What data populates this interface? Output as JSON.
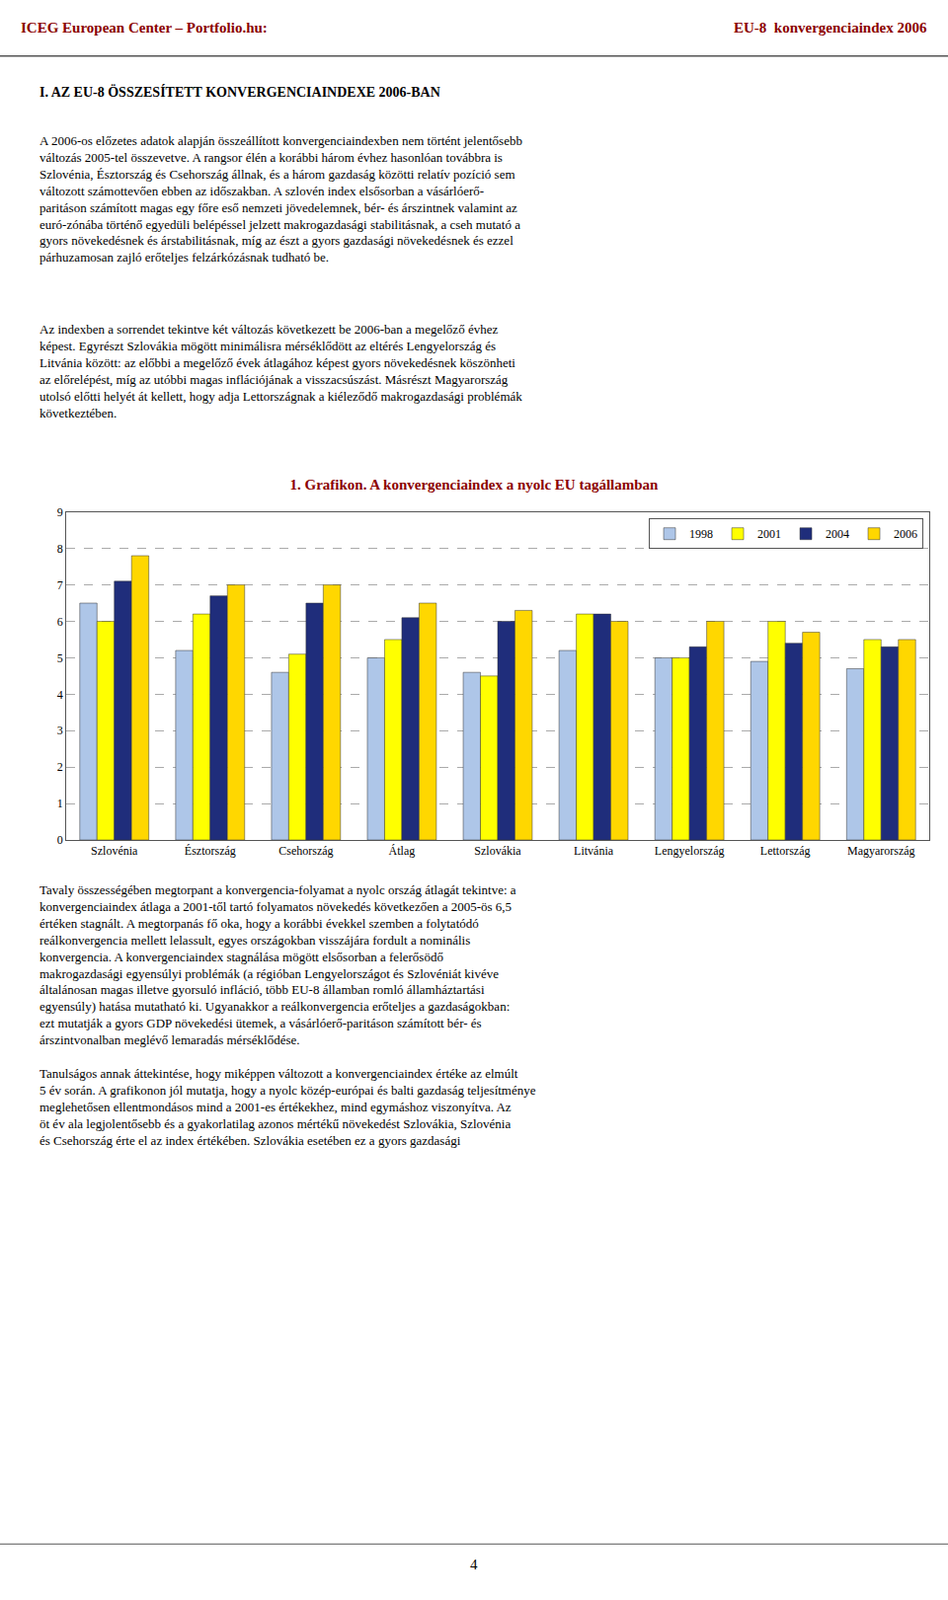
{
  "chart_data": {
    "type": "bar",
    "title": "1. Grafikon. A konvergenciaindex a nyolc EU tagállamban",
    "categories": [
      "Szlovénia",
      "Észtország",
      "Csehország",
      "Átlag",
      "Szlovákia",
      "Litvánia",
      "Lengyelország",
      "Lettország",
      "Magyarország"
    ],
    "series": [
      {
        "name": "1998",
        "color": "#aec6e8",
        "values": [
          6.5,
          5.2,
          4.6,
          5.0,
          4.6,
          5.2,
          5.0,
          4.9,
          4.7
        ]
      },
      {
        "name": "2001",
        "color": "#ffff00",
        "values": [
          6.0,
          6.2,
          5.1,
          5.5,
          4.5,
          6.2,
          5.0,
          6.0,
          5.5
        ]
      },
      {
        "name": "2004",
        "color": "#1f2d7b",
        "values": [
          7.1,
          6.7,
          6.5,
          6.1,
          6.0,
          6.2,
          5.3,
          5.4,
          5.3
        ]
      },
      {
        "name": "2006",
        "color": "#ffd700",
        "values": [
          7.8,
          7.0,
          7.0,
          6.5,
          6.3,
          6.0,
          6.0,
          5.7,
          5.5
        ]
      }
    ],
    "ylim": [
      0,
      9
    ],
    "yticks": [
      0,
      1,
      2,
      3,
      4,
      5,
      6,
      7,
      8,
      9
    ],
    "grid": true,
    "legend": "upper right",
    "annotations": [
      "ICEG European Center – Portfolio.hu:",
      "EU-8  konvergenciaindex 2006",
      "I. AZ EU-8 ÖSSZESÍTETT KONVERGENCIAINDEXE 2006-BAN",
      "A 2006-os előzetes adatok alapján összeállított konvergenciaindexben nem történt jelentősebb\nváltozás 2005-tel összevetve. A rangsor élén a korábbi három évhez hasonlóan továbbra is\nSzlovénia, Észtország és Csehország állnak, és a három gazdaság közötti relatív pozíció sem\nváltozott számottevően ebben az időszakban. A szlovén index elsősorban a vásárlóerő-\nparitáson számított magas egy főre eső nemzeti jövedelemnek, bér- és árszintnek valamint az\neuró-zónába történő egyedüli belépéssel jelzett makrogazdasági stabilitásnak, a cseh mutató a\ngyors növekedésnek és árstabilitásnak, míg az észt a gyors gazdasági növekedésnek és ezzel\npárhuzamosan zajló erőteljes felzárkózásnak tudható be.",
      "Az indexben a sorrendet tekintve két változás következett be 2006-ban a megelőző évhez\nképest. Egyrészt Szlovákia mögött minimálisra mérséklődött az eltérés Lengyelország és\nLitvánia között: az előbbi a megelőző évek átlagához képest gyors növekedésnek köszönheti\naz előrelépést, míg az utóbbi magas inflációjának a visszacsúszást. Másrészt Magyarország\nutolsó előtti helyét át kellett, hogy adja Lettországnak a kiéleződő makrogazdasági problémák\nkövetkeztében.",
      "Tavaly összességében megtorpant a konvergencia-folyamat a nyolc ország átlagát tekintve: a\nkonvergenciaindex átlaga a 2001-től tartó folyamatos növekedés következően a 2005-ös 6,5\nértéken stagnált. A megtorpanás fő oka, hogy a korábbi évekkel szemben a folytatódó\nreálkonvergencia mellett lelassult, egyes országokban visszájára fordult a nominális\nkonvergencia. A konvergenciaindex stagnálása mögött elsősorban a felerősödő\nmakrogazdasági egyensúlyi problémák (a régióban Lengyelországot és Szlovéniát kivéve\náltalánosan magas illetve gyorsuló infláció, több EU-8 államban romló államháztartási\negyensúly) hatása mutatható ki. Ugyanakkor a reálkonvergencia erőteljes a gazdaságokban:\nezt mutatják a gyors GDP növekedési ütemek, a vásárlóerő-paritáson számított bér- és\nárszintvonalban meglévő lemaradás mérséklődése.",
      "Tanulságos annak áttekintése, hogy miképpen változott a konvergenciaindex értéke az elmúlt\n5 év során. A grafikonon jól mutatja, hogy a nyolc közép-európai és balti gazdaság teljesítménye\nmeglehetősen ellentmondásos mind a 2001-es értékekhez, mind egymáshoz viszonyítva. Az\nöt év ala legjolentősebb és a gyakorlatilag azonos mértékű növekedést Szlovákia, Szlovénia\nés Csehország érte el az index értékében. Szlovákia esetében ez a gyors gazdasági",
      "4"
    ]
  }
}
